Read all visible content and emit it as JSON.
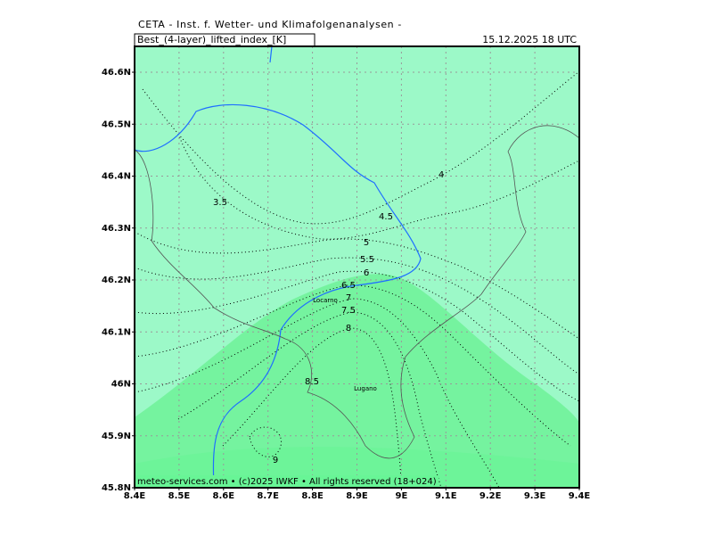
{
  "header": {
    "institute": "CETA - Inst. f. Wetter- und Klimafolgenanalysen -",
    "title": "Best_(4-layer)_lifted_index_[K]",
    "valid": "15.12.2025 18 UTC"
  },
  "axes": {
    "lat_labels": [
      "46.6N",
      "46.5N",
      "46.4N",
      "46.3N",
      "46.2N",
      "46.1N",
      "46N",
      "45.9N",
      "45.8N"
    ],
    "lon_labels": [
      "8.4E",
      "8.5E",
      "8.6E",
      "8.7E",
      "8.8E",
      "8.9E",
      "9E",
      "9.1E",
      "9.2E",
      "9.3E",
      "9.4E"
    ]
  },
  "contour_labels": [
    "3.5",
    "4",
    "4.5",
    "5",
    "5.5",
    "6",
    "6.5",
    "7",
    "7.5",
    "8",
    "8.5",
    "9"
  ],
  "places": [
    "Locarno",
    "Lugano"
  ],
  "footer": "meteo-services.com • (c)2025 IWKF • All rights reserved (18+024)"
}
